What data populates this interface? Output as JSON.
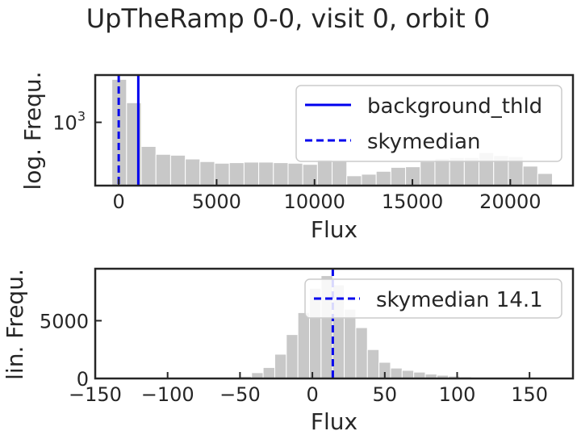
{
  "figure": {
    "title": "UpTheRamp 0-0, visit 0, orbit 0"
  },
  "chart_data": [
    {
      "type": "histogram",
      "yscale": "log",
      "xlabel": "Flux",
      "ylabel": "log. Frequ.",
      "xlim": [
        -1200,
        23200
      ],
      "ylim": [
        180,
        3600
      ],
      "xticks": [
        0,
        5000,
        10000,
        15000,
        20000
      ],
      "xtick_labels": [
        "0",
        "5000",
        "10000",
        "15000",
        "20000"
      ],
      "ytick_label_base": "10",
      "ytick_label_exp": "3",
      "ytick_value": 1000,
      "bin_edges": [
        -350,
        400,
        1150,
        1900,
        2650,
        3400,
        4150,
        4900,
        5650,
        6400,
        7150,
        7900,
        8650,
        9400,
        10150,
        10900,
        11650,
        12400,
        13150,
        13900,
        14650,
        15400,
        16150,
        16900,
        17650,
        18400,
        19150,
        19900,
        20650,
        21400,
        22150
      ],
      "counts": [
        3200,
        1700,
        520,
        420,
        410,
        370,
        345,
        330,
        335,
        340,
        340,
        335,
        330,
        320,
        365,
        355,
        235,
        245,
        265,
        295,
        300,
        345,
        375,
        385,
        385,
        440,
        405,
        395,
        305,
        250
      ],
      "bar_color": "#c8c8c8",
      "vlines": [
        {
          "x": 1000,
          "style": "solid",
          "color": "#0000ee",
          "label": "background_thld"
        },
        {
          "x": 0,
          "style": "dashed",
          "color": "#0000ee",
          "label": "skymedian"
        }
      ],
      "legend_position": "upper-right"
    },
    {
      "type": "histogram",
      "yscale": "linear",
      "xlabel": "Flux",
      "ylabel": "lin. Frequ.",
      "xlim": [
        -150,
        180
      ],
      "ylim": [
        0,
        9500
      ],
      "xticks": [
        -150,
        -100,
        -50,
        0,
        50,
        100,
        150
      ],
      "xtick_labels": [
        "−150",
        "−100",
        "−50",
        "0",
        "50",
        "100",
        "150"
      ],
      "yticks": [
        0,
        5000
      ],
      "ytick_labels": [
        "0",
        "5000"
      ],
      "bin_edges": [
        -50,
        -42,
        -34,
        -26,
        -18,
        -10,
        -2,
        6,
        14,
        22,
        30,
        38,
        46,
        54,
        62,
        70,
        78,
        86,
        94,
        102,
        110,
        118
      ],
      "counts": [
        180,
        500,
        950,
        2100,
        3800,
        5700,
        7800,
        8900,
        8100,
        6000,
        4400,
        2500,
        1400,
        900,
        700,
        550,
        380,
        280,
        200,
        140,
        90
      ],
      "bar_color": "#c8c8c8",
      "vlines": [
        {
          "x": 14.1,
          "style": "dashed",
          "color": "#0000ee",
          "label": "skymedian 14.1"
        }
      ],
      "legend_position": "upper-right"
    }
  ]
}
